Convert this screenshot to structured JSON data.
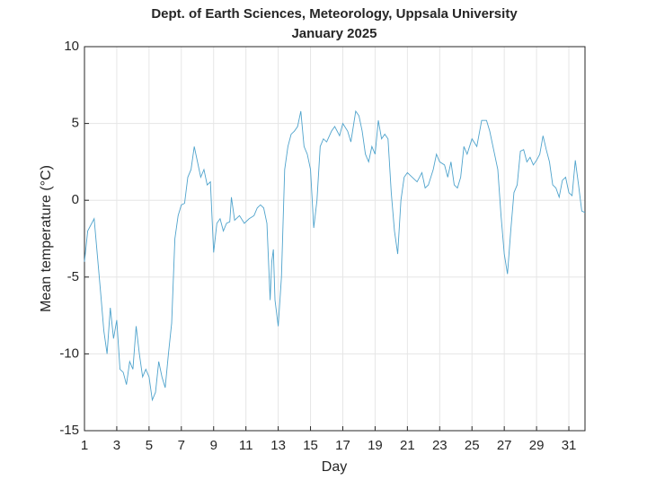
{
  "chart_data": {
    "type": "line",
    "title": [
      "Dept. of Earth Sciences, Meteorology, Uppsala University",
      "January 2025"
    ],
    "xlabel": "Day",
    "ylabel": "Mean temperature (°C)",
    "xlim": [
      1,
      32
    ],
    "xticks": [
      1,
      3,
      5,
      7,
      9,
      11,
      13,
      15,
      17,
      19,
      21,
      23,
      25,
      27,
      29,
      31
    ],
    "ylim": [
      -15,
      10
    ],
    "yticks": [
      -15,
      -10,
      -5,
      0,
      5,
      10
    ],
    "grid": true,
    "series": [
      {
        "color": "#4fa3cc",
        "x": [
          1.0,
          1.2,
          1.6,
          2.0,
          2.2,
          2.4,
          2.6,
          2.8,
          3.0,
          3.2,
          3.4,
          3.6,
          3.8,
          4.0,
          4.2,
          4.4,
          4.6,
          4.8,
          5.0,
          5.2,
          5.4,
          5.6,
          5.8,
          6.0,
          6.2,
          6.4,
          6.6,
          6.8,
          7.0,
          7.2,
          7.4,
          7.6,
          7.8,
          8.0,
          8.2,
          8.4,
          8.6,
          8.8,
          9.0,
          9.2,
          9.4,
          9.6,
          9.8,
          10.0,
          10.1,
          10.3,
          10.6,
          10.9,
          11.2,
          11.5,
          11.7,
          11.9,
          12.1,
          12.3,
          12.5,
          12.6,
          12.7,
          12.8,
          13.0,
          13.2,
          13.4,
          13.6,
          13.8,
          14.0,
          14.2,
          14.4,
          14.6,
          14.8,
          15.0,
          15.2,
          15.4,
          15.6,
          15.8,
          16.0,
          16.3,
          16.5,
          16.8,
          17.0,
          17.3,
          17.5,
          17.8,
          18.0,
          18.2,
          18.4,
          18.6,
          18.8,
          19.0,
          19.2,
          19.4,
          19.6,
          19.8,
          20.0,
          20.2,
          20.4,
          20.6,
          20.8,
          21.0,
          21.3,
          21.6,
          21.9,
          22.1,
          22.3,
          22.6,
          22.8,
          23.0,
          23.3,
          23.5,
          23.7,
          23.9,
          24.1,
          24.3,
          24.5,
          24.7,
          25.0,
          25.3,
          25.6,
          25.9,
          26.1,
          26.3,
          26.6,
          26.8,
          27.0,
          27.2,
          27.4,
          27.6,
          27.8,
          28.0,
          28.2,
          28.4,
          28.6,
          28.8,
          29.0,
          29.2,
          29.4,
          29.6,
          29.8,
          30.0,
          30.2,
          30.4,
          30.6,
          30.8,
          31.0,
          31.2,
          31.4,
          31.6,
          31.8,
          32.0
        ],
        "values": [
          -4.0,
          -2.0,
          -1.2,
          -6.0,
          -8.5,
          -10.0,
          -7.0,
          -9.0,
          -7.8,
          -11.0,
          -11.2,
          -12.0,
          -10.5,
          -11.0,
          -8.2,
          -10.0,
          -11.5,
          -11.0,
          -11.5,
          -13.0,
          -12.5,
          -10.5,
          -11.5,
          -12.2,
          -10.0,
          -8.0,
          -2.5,
          -1.0,
          -0.3,
          -0.2,
          1.5,
          2.0,
          3.5,
          2.5,
          1.5,
          2.0,
          1.0,
          1.2,
          -3.4,
          -1.5,
          -1.2,
          -2.0,
          -1.5,
          -1.4,
          0.2,
          -1.3,
          -1.0,
          -1.5,
          -1.2,
          -1.0,
          -0.5,
          -0.3,
          -0.5,
          -1.5,
          -6.5,
          -4.0,
          -3.2,
          -6.5,
          -8.2,
          -5.0,
          2.0,
          3.5,
          4.3,
          4.5,
          4.8,
          5.8,
          3.5,
          3.0,
          2.0,
          -1.8,
          0.0,
          3.5,
          4.0,
          3.8,
          4.5,
          4.8,
          4.2,
          5.0,
          4.5,
          3.8,
          5.8,
          5.5,
          4.5,
          3.0,
          2.5,
          3.5,
          3.0,
          5.2,
          4.0,
          4.3,
          4.0,
          0.5,
          -2.0,
          -3.5,
          0.0,
          1.5,
          1.8,
          1.5,
          1.2,
          1.8,
          0.8,
          1.0,
          2.0,
          3.0,
          2.5,
          2.3,
          1.5,
          2.5,
          1.0,
          0.8,
          1.5,
          3.5,
          3.0,
          4.0,
          3.5,
          5.2,
          5.2,
          4.5,
          3.5,
          2.0,
          -1.0,
          -3.5,
          -4.8,
          -2.0,
          0.5,
          1.0,
          3.2,
          3.3,
          2.5,
          2.8,
          2.3,
          2.6,
          3.0,
          4.2,
          3.3,
          2.5,
          1.0,
          0.8,
          0.2,
          1.3,
          1.5,
          0.5,
          0.3,
          2.6,
          1.0,
          -0.7,
          -0.8
        ]
      }
    ]
  }
}
